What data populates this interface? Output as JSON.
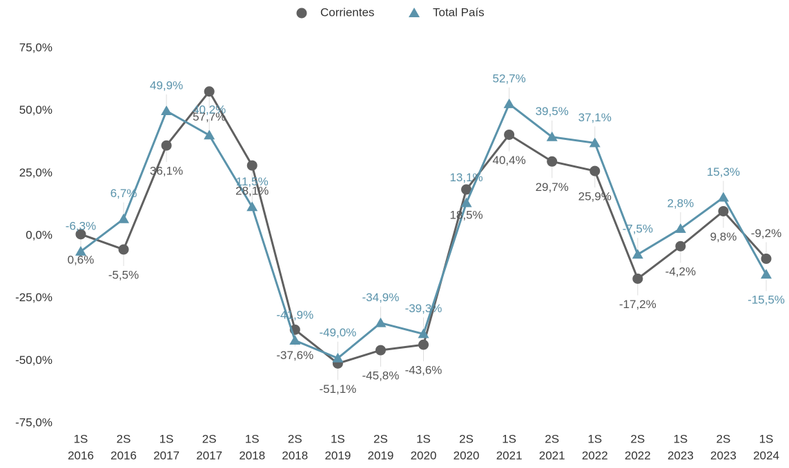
{
  "chart_data": {
    "type": "line",
    "categories": [
      [
        "1S",
        "2016"
      ],
      [
        "2S",
        "2016"
      ],
      [
        "1S",
        "2017"
      ],
      [
        "2S",
        "2017"
      ],
      [
        "1S",
        "2018"
      ],
      [
        "2S",
        "2018"
      ],
      [
        "1S",
        "2019"
      ],
      [
        "2S",
        "2019"
      ],
      [
        "1S",
        "2020"
      ],
      [
        "2S",
        "2020"
      ],
      [
        "1S",
        "2021"
      ],
      [
        "2S",
        "2021"
      ],
      [
        "1S",
        "2022"
      ],
      [
        "2S",
        "2022"
      ],
      [
        "1S",
        "2023"
      ],
      [
        "2S",
        "2023"
      ],
      [
        "1S",
        "2024"
      ]
    ],
    "series": [
      {
        "name": "Corrientes",
        "color": "#606060",
        "marker": "circle",
        "values": [
          0.6,
          -5.5,
          36.1,
          57.7,
          28.1,
          -37.6,
          -51.1,
          -45.8,
          -43.6,
          18.5,
          40.4,
          29.7,
          25.9,
          -17.2,
          -4.2,
          9.8,
          -9.2
        ],
        "value_labels": [
          "0,6%",
          "-5,5%",
          "36,1%",
          "57,7%",
          "28,1%",
          "-37,6%",
          "-51,1%",
          "-45,8%",
          "-43,6%",
          "18,5%",
          "40,4%",
          "29,7%",
          "25,9%",
          "-17,2%",
          "-4,2%",
          "9,8%",
          "-9,2%"
        ]
      },
      {
        "name": "Total País",
        "color": "#5a93ab",
        "marker": "triangle",
        "values": [
          -6.3,
          6.7,
          49.9,
          40.2,
          11.5,
          -41.9,
          -49.0,
          -34.9,
          -39.3,
          13.1,
          52.7,
          39.5,
          37.1,
          -7.5,
          2.8,
          15.3,
          -15.5
        ],
        "value_labels": [
          "-6,3%",
          "6,7%",
          "49,9%",
          "40,2%",
          "11,5%",
          "-41,9%",
          "-49,0%",
          "-34,9%",
          "-39,3%",
          "13,1%",
          "52,7%",
          "39,5%",
          "37,1%",
          "-7,5%",
          "2,8%",
          "15,3%",
          "-15,5%"
        ]
      }
    ],
    "ylim": [
      -75,
      75
    ],
    "yticks": [
      {
        "value": -75,
        "label": "-75,0%"
      },
      {
        "value": -50,
        "label": "-50,0%"
      },
      {
        "value": -25,
        "label": "-25,0%"
      },
      {
        "value": 0,
        "label": "0,0%"
      },
      {
        "value": 25,
        "label": "25,0%"
      },
      {
        "value": 50,
        "label": "50,0%"
      },
      {
        "value": 75,
        "label": "75,0%"
      }
    ],
    "grid": false,
    "legend": "top"
  }
}
